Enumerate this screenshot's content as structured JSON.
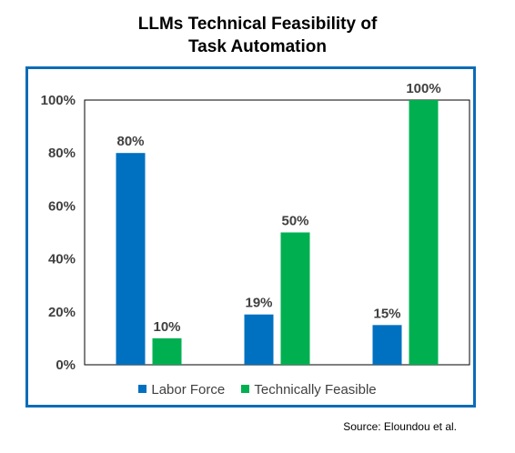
{
  "title_line1": "LLMs Technical Feasibility  of",
  "title_line2": "Task Automation",
  "source": "Source: Eloundou  et al.",
  "colors": {
    "labor": "#0070c0",
    "feasible": "#00b050",
    "frame": "#0b6cb8"
  },
  "chart_data": {
    "type": "bar",
    "categories": [
      "",
      "",
      ""
    ],
    "series": [
      {
        "name": "Labor Force",
        "values": [
          80,
          19,
          15
        ],
        "labels": [
          "80%",
          "19%",
          "15%"
        ]
      },
      {
        "name": "Technically Feasible",
        "values": [
          10,
          50,
          100
        ],
        "labels": [
          "10%",
          "50%",
          "100%"
        ]
      }
    ],
    "ylim": [
      0,
      100
    ],
    "yticks": [
      "0%",
      "20%",
      "40%",
      "60%",
      "80%",
      "100%"
    ],
    "legend": "bottom",
    "grid": false
  }
}
